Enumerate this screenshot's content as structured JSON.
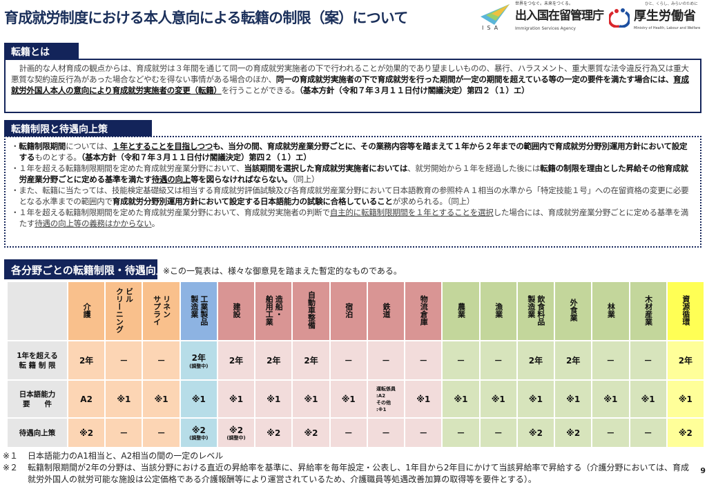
{
  "title": "育成就労制度における本人意向による転籍の制限（案）について",
  "logos": {
    "isa": {
      "tagline": "世界をつなぐ。未来をつくる。",
      "name": "出入国在留管理庁",
      "english": "Immigration Services Agency",
      "abbr": "ISA"
    },
    "mhlw": {
      "tagline": "ひと、くらし、みらいのために",
      "name": "厚生労働省",
      "english": "Ministry of Health, Labour and Welfare"
    }
  },
  "section1": {
    "heading": "転籍とは",
    "paragraphs": [
      [
        {
          "t": "計画的な人材育成の観点からは、育成就労は３年間を通じて同一の育成就労実施者の下で行われることが効果的であり望ましいものの、暴行、ハラスメント、重大悪質な法令違反行為又は重大悪質な契約違反行為があった場合などやむを得ない事情がある場合のほか、"
        },
        {
          "t": "同一の育成就労実施者の下で育成就労を行った期間が一定の期間を超えている等の一定の要件を満たす場合には、",
          "b": true
        },
        {
          "t": "育成就労外国人本人の意向により育成就労実施者の変更（転籍）",
          "b": true,
          "u": true
        },
        {
          "t": "を行うことができる。"
        },
        {
          "t": "（基本方針（令和７年３月１１日付け閣議決定）第四２（１）エ）",
          "b": true
        }
      ]
    ]
  },
  "section2": {
    "heading": "転籍制限と待遇向上策",
    "paragraphs": [
      [
        {
          "t": "・"
        },
        {
          "t": "転籍制限期間",
          "b": true
        },
        {
          "t": "については、"
        },
        {
          "t": "１年とすることを目指しつつ",
          "b": true,
          "u": true
        },
        {
          "t": "も、当分の間、育成就労産業分野ごとに、その業務内容等を踏まえて１年から２年までの範囲内で育成就労分野別運用方針において設定する",
          "b": true
        },
        {
          "t": "ものとする。"
        },
        {
          "t": "（基本方針（令和７年３月１１日付け閣議決定）第四２（１）エ）",
          "b": true
        }
      ],
      [
        {
          "t": "・１年を超える転籍制限期間を定めた育成就労産業分野において、"
        },
        {
          "t": "当該期間を選択した育成就労実施者においては",
          "b": true
        },
        {
          "t": "、就労開始から１年を経過した後には"
        },
        {
          "t": "転籍の制限を理由とした昇給その他育成就労産業分野ごとに定める基準を満たす",
          "b": true
        },
        {
          "t": "待遇の向上",
          "b": true,
          "u": true
        },
        {
          "t": "等を図らなければならない。",
          "b": true
        },
        {
          "t": "（同上）"
        }
      ],
      [
        {
          "t": "・また、転籍に当たっては、技能検定基礎級又は相当する育成就労評価試験及び各育成就労産業分野において日本語教育の参照枠Ａ１相当の水準から「特定技能１号」への在留資格の変更に必要となる水準までの範囲内で"
        },
        {
          "t": "育成就労分野別運用方針において設定する日本語能力の試験に合格していること",
          "b": true
        },
        {
          "t": "が求められる。（同上）"
        }
      ],
      [
        {
          "t": "・１年を超える転籍制限期間を定めた育成就労産業分野において、育成就労実施者の判断で"
        },
        {
          "t": "自主的に転籍制限期間を１年とすることを選択",
          "u": true
        },
        {
          "t": "した場合には、育成就労産業分野ごとに定める基準を満たす"
        },
        {
          "t": "待遇の向上等の義務はかからない",
          "u": true
        },
        {
          "t": "。"
        }
      ]
    ]
  },
  "section3": {
    "heading": "各分野ごとの転籍制限・待遇向上策一覧",
    "note": "※この一覧表は、様々な御意見を踏まえた暫定的なものである。",
    "row_labels": [
      "1年を超える\n転 籍 制 限",
      "日本語能力\n要　　件",
      "待遇向上策"
    ],
    "columns": [
      {
        "name": "介護",
        "group": "orange",
        "restriction": "2年",
        "japanese": "A2",
        "treatment": "※2"
      },
      {
        "name": "ビル\nクリーニング",
        "group": "orange",
        "restriction": "－",
        "japanese": "※1",
        "treatment": "－"
      },
      {
        "name": "リネン\nサプライ",
        "group": "orange",
        "restriction": "－",
        "japanese": "※1",
        "treatment": "－"
      },
      {
        "name": "工業製品\n製造業",
        "group": "blue",
        "restriction": "2年",
        "restriction_note": "(調整中)",
        "japanese": "※1",
        "treatment": "※2",
        "treatment_note": "(調整中)"
      },
      {
        "name": "建設",
        "group": "pink",
        "restriction": "2年",
        "japanese": "※1",
        "treatment": "※2",
        "treatment_note": "(調整中)"
      },
      {
        "name": "造船・\n舶用工業",
        "group": "pink",
        "restriction": "2年",
        "japanese": "※1",
        "treatment": "※2"
      },
      {
        "name": "自動車整備",
        "group": "pink",
        "restriction": "2年",
        "japanese": "※1",
        "treatment": "※2"
      },
      {
        "name": "宿泊",
        "group": "pink",
        "restriction": "－",
        "japanese": "※1",
        "treatment": "－"
      },
      {
        "name": "鉄道",
        "group": "pink",
        "restriction": "－",
        "japanese": "運転係員\n:A2\nその他\n:※1",
        "treatment": "－"
      },
      {
        "name": "物流倉庫",
        "group": "pink",
        "restriction": "－",
        "japanese": "※1",
        "treatment": "－"
      },
      {
        "name": "農業",
        "group": "green",
        "restriction": "－",
        "japanese": "※1",
        "treatment": "－"
      },
      {
        "name": "漁業",
        "group": "green",
        "restriction": "－",
        "japanese": "※1",
        "treatment": "－"
      },
      {
        "name": "飲食料品\n製造業",
        "group": "green",
        "restriction": "2年",
        "japanese": "※1",
        "treatment": "※2"
      },
      {
        "name": "外食業",
        "group": "green",
        "restriction": "2年",
        "japanese": "※1",
        "treatment": "※2"
      },
      {
        "name": "林業",
        "group": "green",
        "restriction": "－",
        "japanese": "※1",
        "treatment": "－"
      },
      {
        "name": "木材産業",
        "group": "green",
        "restriction": "－",
        "japanese": "※1",
        "treatment": "－"
      },
      {
        "name": "資源循環",
        "group": "yellow",
        "restriction": "2年",
        "japanese": "※1",
        "treatment": "※2"
      }
    ]
  },
  "footnotes": [
    {
      "mark": "※１",
      "text": "日本語能力のA1相当と、A2相当の間の一定のレベル"
    },
    {
      "mark": "※２",
      "text": "転籍制限期間が2年の分野は、当該分野における直近の昇給率を基準に、昇給率を毎年設定・公表し、1年目から2年目にかけて当該昇給率で昇給する（介護分野においては、育成就労外国人の就労可能な施設は公定価格である介護報酬等により運営されているため、介護職員等処遇改善加算の取得等を要件とする）。"
    }
  ],
  "page_number": "9",
  "colors": {
    "navy": "#13245a",
    "orange": "#f9c08c",
    "blue": "#8db3e2",
    "pink": "#d99594",
    "green": "#c3d69b",
    "yellow": "#ffff55"
  }
}
